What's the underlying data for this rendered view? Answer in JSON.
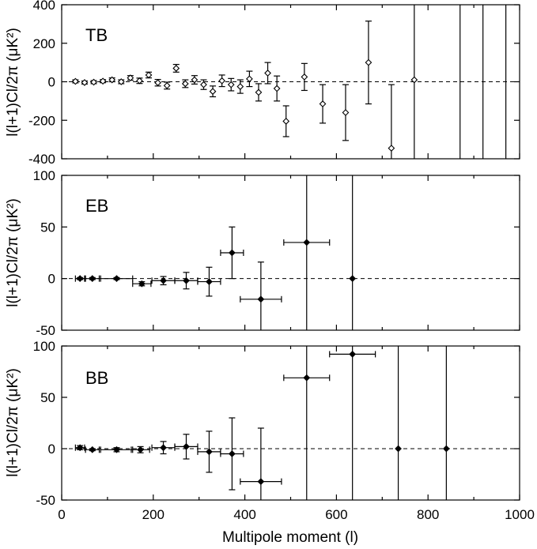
{
  "chart_data": [
    {
      "type": "scatter",
      "label": "TB",
      "ylabel": "l(l+1)Cl/2π (μK²)",
      "xlim": [
        0,
        1000
      ],
      "ylim": [
        -400,
        400
      ],
      "yticks": [
        -400,
        -200,
        0,
        200,
        400
      ],
      "marker": "open",
      "points": [
        {
          "x": 30,
          "y": 2,
          "err": 8
        },
        {
          "x": 50,
          "y": -4,
          "err": 8
        },
        {
          "x": 70,
          "y": -2,
          "err": 8
        },
        {
          "x": 90,
          "y": 3,
          "err": 8
        },
        {
          "x": 110,
          "y": 10,
          "err": 10
        },
        {
          "x": 130,
          "y": 0,
          "err": 10
        },
        {
          "x": 150,
          "y": 20,
          "err": 12
        },
        {
          "x": 170,
          "y": 5,
          "err": 14
        },
        {
          "x": 190,
          "y": 35,
          "err": 15
        },
        {
          "x": 210,
          "y": -5,
          "err": 17
        },
        {
          "x": 230,
          "y": -20,
          "err": 18
        },
        {
          "x": 250,
          "y": 70,
          "err": 20
        },
        {
          "x": 270,
          "y": -10,
          "err": 20
        },
        {
          "x": 290,
          "y": 10,
          "err": 22
        },
        {
          "x": 310,
          "y": -15,
          "err": 25
        },
        {
          "x": 330,
          "y": -50,
          "err": 28
        },
        {
          "x": 350,
          "y": 5,
          "err": 30
        },
        {
          "x": 370,
          "y": -15,
          "err": 32
        },
        {
          "x": 390,
          "y": -25,
          "err": 35
        },
        {
          "x": 410,
          "y": 15,
          "err": 40
        },
        {
          "x": 430,
          "y": -55,
          "err": 45
        },
        {
          "x": 450,
          "y": 45,
          "err": 55
        },
        {
          "x": 470,
          "y": -35,
          "err": 65
        },
        {
          "x": 490,
          "y": -205,
          "err": 80
        },
        {
          "x": 530,
          "y": 25,
          "err": 70
        },
        {
          "x": 570,
          "y": -115,
          "err": 100
        },
        {
          "x": 620,
          "y": -160,
          "err": 145
        },
        {
          "x": 670,
          "y": 100,
          "err": 215
        },
        {
          "x": 720,
          "y": -345,
          "err": 330
        },
        {
          "x": 770,
          "y": 10,
          "err": 800
        },
        {
          "x": 870,
          "y": 0,
          "err": 2000
        },
        {
          "x": 920,
          "y": 0,
          "err": 2000
        },
        {
          "x": 970,
          "y": 0,
          "err": 2000
        }
      ]
    },
    {
      "type": "scatter",
      "label": "EB",
      "ylabel": "l(l+1)Cl/2π (μK²)",
      "xlim": [
        0,
        1000
      ],
      "ylim": [
        -50,
        100
      ],
      "yticks": [
        -50,
        0,
        50,
        100
      ],
      "marker": "filled",
      "points": [
        {
          "x": 40,
          "y": 0,
          "err": 1,
          "xerr": 10
        },
        {
          "x": 67,
          "y": 0,
          "err": 1,
          "xerr": 15
        },
        {
          "x": 120,
          "y": 0,
          "err": 1,
          "xerr": 35
        },
        {
          "x": 175,
          "y": -5,
          "err": 2,
          "xerr": 20
        },
        {
          "x": 222,
          "y": -2,
          "err": 4,
          "xerr": 25
        },
        {
          "x": 272,
          "y": -2,
          "err": 8,
          "xerr": 25
        },
        {
          "x": 322,
          "y": -3,
          "err": 14,
          "xerr": 25
        },
        {
          "x": 372,
          "y": 25,
          "err": 25,
          "xerr": 25
        },
        {
          "x": 435,
          "y": -20,
          "err": 36,
          "xerr": 45
        },
        {
          "x": 535,
          "y": 35,
          "err": 200,
          "xerr": 50
        },
        {
          "x": 635,
          "y": 0,
          "err": 400,
          "xerr": 0
        }
      ]
    },
    {
      "type": "scatter",
      "label": "BB",
      "ylabel": "l(l+1)Cl/2π (μK²)",
      "xlabel": "Multipole moment (l)",
      "xlim": [
        0,
        1000
      ],
      "ylim": [
        -50,
        100
      ],
      "yticks": [
        -50,
        0,
        50,
        100
      ],
      "xticks": [
        0,
        200,
        400,
        600,
        800,
        1000
      ],
      "marker": "filled",
      "points": [
        {
          "x": 40,
          "y": 1,
          "err": 2,
          "xerr": 10
        },
        {
          "x": 67,
          "y": -1,
          "err": 1,
          "xerr": 15
        },
        {
          "x": 120,
          "y": -1,
          "err": 2,
          "xerr": 35
        },
        {
          "x": 172,
          "y": -1,
          "err": 3,
          "xerr": 20
        },
        {
          "x": 222,
          "y": 1,
          "err": 6,
          "xerr": 25
        },
        {
          "x": 272,
          "y": 2,
          "err": 12,
          "xerr": 25
        },
        {
          "x": 322,
          "y": -3,
          "err": 20,
          "xerr": 25
        },
        {
          "x": 372,
          "y": -5,
          "err": 35,
          "xerr": 25
        },
        {
          "x": 435,
          "y": -32,
          "err": 52,
          "xerr": 45
        },
        {
          "x": 535,
          "y": 69,
          "err": 250,
          "xerr": 50
        },
        {
          "x": 635,
          "y": 92,
          "err": 400,
          "xerr": 50
        },
        {
          "x": 735,
          "y": 0,
          "err": 600,
          "xerr": 0
        },
        {
          "x": 840,
          "y": 0,
          "err": 800,
          "xerr": 0
        }
      ]
    }
  ]
}
